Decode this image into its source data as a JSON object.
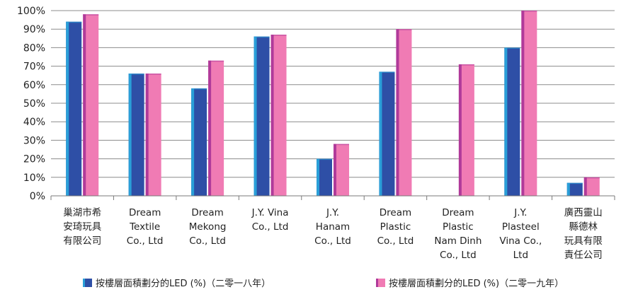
{
  "chart_data": {
    "type": "bar",
    "categories": [
      [
        "巢湖市希",
        "安琦玩具",
        "有限公司"
      ],
      [
        "Dream",
        "Textile",
        "Co., Ltd"
      ],
      [
        "Dream",
        "Mekong",
        "Co., Ltd"
      ],
      [
        "J.Y. Vina",
        "Co., Ltd"
      ],
      [
        "J.Y.",
        "Hanam",
        "Co., Ltd"
      ],
      [
        "Dream",
        "Plastic",
        "Co., Ltd"
      ],
      [
        "Dream",
        "Plastic",
        "Nam Dinh",
        "Co., Ltd"
      ],
      [
        "J.Y.",
        "Plasteel",
        "Vina Co.,",
        "Ltd"
      ],
      [
        "廣西靈山",
        "縣德林",
        "玩具有限",
        "責任公司"
      ]
    ],
    "series": [
      {
        "name": "按樓層面積劃分的LED (%)（二零一八年）",
        "color": "#2e4fa6",
        "edge_color": "#2a9fd8",
        "values": [
          94,
          66,
          58,
          86,
          20,
          67,
          null,
          80,
          7
        ]
      },
      {
        "name": "按樓層面積劃分的LED (%)（二零一九年）",
        "color": "#f07bb4",
        "edge_color": "#b03a9a",
        "values": [
          98,
          66,
          73,
          87,
          28,
          90,
          71,
          100,
          10
        ]
      }
    ],
    "xlabel": "",
    "ylabel": "",
    "ylim": [
      0,
      100
    ],
    "yticks": [
      "0%",
      "10%",
      "20%",
      "30%",
      "40%",
      "50%",
      "60%",
      "70%",
      "80%",
      "90%",
      "100%"
    ],
    "grid": true,
    "legend_position": "bottom"
  }
}
